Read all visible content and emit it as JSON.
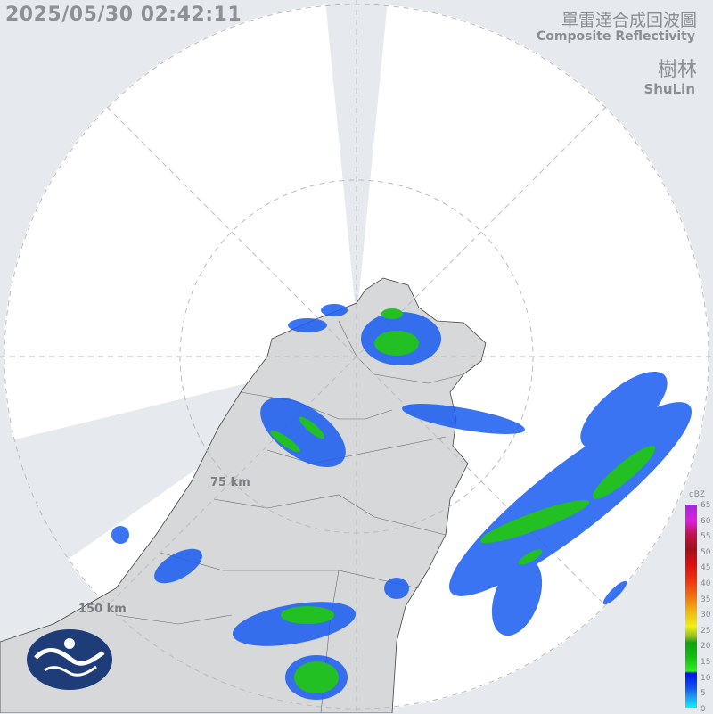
{
  "header": {
    "timestamp": "2025/05/30 02:42:11",
    "title_zh": "單雷達合成回波圖",
    "title_en": "Composite Reflectivity",
    "station_zh": "樹林",
    "station_en": "ShuLin"
  },
  "range_rings": [
    "75 km",
    "150 km"
  ],
  "legend": {
    "unit": "dBZ",
    "ticks": [
      "65",
      "60",
      "55",
      "50",
      "45",
      "40",
      "35",
      "30",
      "25",
      "20",
      "15",
      "10",
      "5",
      "0"
    ]
  },
  "colors": {
    "background": "#e6eaee",
    "coverage": "#ffffff",
    "land": "#d6d8da",
    "weak_echo": "#1a5cf0",
    "moderate_echo": "#22c022",
    "logo": "#1e3c78"
  },
  "logo": "Central Weather Administration logo"
}
